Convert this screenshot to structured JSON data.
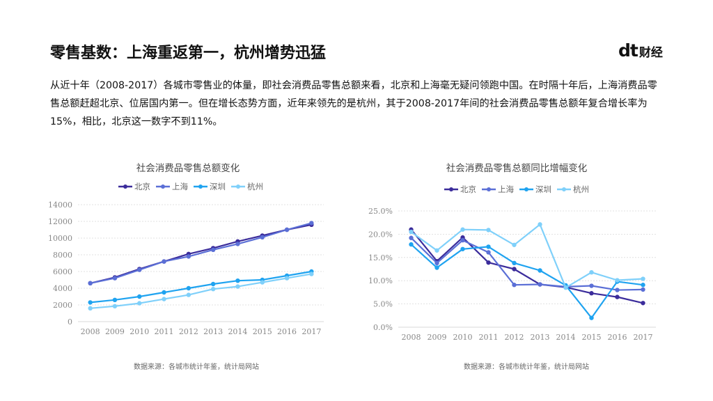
{
  "header": {
    "title": "零售基数：上海重返第一，杭州增势迅猛",
    "logo_mark": "dt",
    "logo_text": "财经"
  },
  "intro": "从近十年（2008-2017）各城市零售业的体量，即社会消费品零售总额来看，北京和上海毫无疑问领跑中国。在时隔十年后，上海消费品零售总额赶超北京、位居国内第一。但在增长态势方面，近年来领先的是杭州，其于2008-2017年间的社会消费品零售总额年复合增长率为15%，相比，北京这一数字不到11%。",
  "sources": {
    "left": "数据来源：各城市统计年鉴，统计局网站",
    "right": "数据来源：各城市统计年鉴，统计局网站"
  },
  "colors": {
    "北京": "#3b2c9b",
    "上海": "#5b6fd6",
    "深圳": "#1fa3f0",
    "杭州": "#7fd0fa",
    "grid": "#d9d9d9",
    "tick": "#888888",
    "title": "#444444"
  },
  "chart_data": [
    {
      "type": "line",
      "title": "社会消费品零售总额变化",
      "xlabel": "",
      "ylabel": "",
      "x": [
        "2008",
        "2009",
        "2010",
        "2011",
        "2012",
        "2013",
        "2014",
        "2015",
        "2016",
        "2017"
      ],
      "ylim": [
        0,
        14000
      ],
      "yticks": [
        "0",
        "2000",
        "4000",
        "6000",
        "8000",
        "10000",
        "12000",
        "14000"
      ],
      "grid": true,
      "legend": "top",
      "series": [
        {
          "name": "北京",
          "values": [
            4600,
            5300,
            6300,
            7200,
            8100,
            8800,
            9600,
            10300,
            11000,
            11600
          ]
        },
        {
          "name": "上海",
          "values": [
            4600,
            5200,
            6200,
            7200,
            7800,
            8600,
            9300,
            10100,
            11000,
            11800
          ]
        },
        {
          "name": "深圳",
          "values": [
            2300,
            2600,
            3000,
            3500,
            4000,
            4500,
            4900,
            5000,
            5500,
            6000
          ]
        },
        {
          "name": "杭州",
          "values": [
            1600,
            1850,
            2200,
            2700,
            3200,
            3900,
            4200,
            4700,
            5200,
            5700
          ]
        }
      ]
    },
    {
      "type": "line",
      "title": "社会消费品零售总额同比增幅变化",
      "xlabel": "",
      "ylabel": "",
      "x": [
        "2008",
        "2009",
        "2010",
        "2011",
        "2012",
        "2013",
        "2014",
        "2015",
        "2016",
        "2017"
      ],
      "ylim": [
        0,
        25
      ],
      "yticks": [
        "0.0%",
        "5.0%",
        "10.0%",
        "15.0%",
        "20.0%",
        "25.0%"
      ],
      "grid": true,
      "legend": "top",
      "series": [
        {
          "name": "北京",
          "values": [
            21.0,
            14.2,
            19.3,
            13.9,
            12.5,
            9.2,
            8.6,
            7.3,
            6.5,
            5.2
          ]
        },
        {
          "name": "上海",
          "values": [
            19.2,
            13.8,
            18.7,
            16.1,
            9.1,
            9.2,
            8.7,
            8.9,
            8.0,
            8.1
          ]
        },
        {
          "name": "深圳",
          "values": [
            17.8,
            12.8,
            16.8,
            17.3,
            13.8,
            12.2,
            9.0,
            2.0,
            9.8,
            9.1
          ]
        },
        {
          "name": "杭州",
          "values": [
            20.5,
            16.5,
            21.0,
            20.9,
            17.7,
            22.1,
            8.5,
            11.8,
            10.1,
            10.4
          ]
        }
      ]
    }
  ]
}
